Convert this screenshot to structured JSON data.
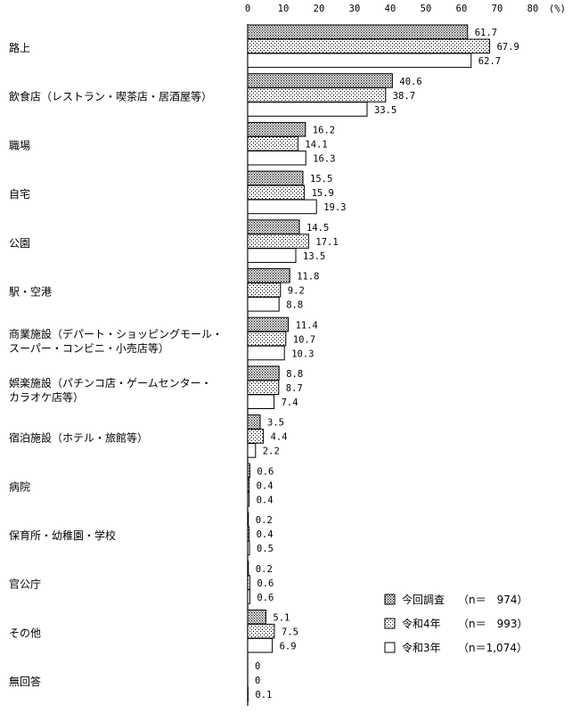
{
  "chart_data": {
    "type": "bar",
    "orientation": "horizontal",
    "unit_label": "(%)",
    "xlim": [
      0,
      80
    ],
    "xticks": [
      "0",
      "10",
      "20",
      "30",
      "40",
      "50",
      "60",
      "70",
      "80"
    ],
    "grid": false,
    "legend_position": "bottom-right",
    "categories": [
      [
        "路上"
      ],
      [
        "飲食店（レストラン・喫茶店・居酒屋等）"
      ],
      [
        "職場"
      ],
      [
        "自宅"
      ],
      [
        "公園"
      ],
      [
        "駅・空港"
      ],
      [
        "商業施設（デパート・ショッピングモール・",
        "スーパー・コンビニ・小売店等）"
      ],
      [
        "娯楽施設（パチンコ店・ゲームセンター・",
        "カラオケ店等）"
      ],
      [
        "宿泊施設（ホテル・旅館等）"
      ],
      [
        "病院"
      ],
      [
        "保育所・幼稚園・学校"
      ],
      [
        "官公庁"
      ],
      [
        "その他"
      ],
      [
        "無回答"
      ]
    ],
    "series": [
      {
        "name": "今回調査",
        "n_label": "（n＝　974）",
        "pattern": "dense-dots",
        "values": [
          61.7,
          40.6,
          16.2,
          15.5,
          14.5,
          11.8,
          11.4,
          8.8,
          3.5,
          0.6,
          0.2,
          0.2,
          5.1,
          0
        ],
        "value_labels": [
          "61.7",
          "40.6",
          "16.2",
          "15.5",
          "14.5",
          "11.8",
          "11.4",
          "8.8",
          "3.5",
          "0.6",
          "0.2",
          "0.2",
          "5.1",
          "0"
        ]
      },
      {
        "name": "令和4年",
        "n_label": "（n＝　993）",
        "pattern": "sparse-dots",
        "values": [
          67.9,
          38.7,
          14.1,
          15.9,
          17.1,
          9.2,
          10.7,
          8.7,
          4.4,
          0.4,
          0.4,
          0.6,
          7.5,
          0
        ],
        "value_labels": [
          "67.9",
          "38.7",
          "14.1",
          "15.9",
          "17.1",
          "9.2",
          "10.7",
          "8.7",
          "4.4",
          "0.4",
          "0.4",
          "0.6",
          "7.5",
          "0"
        ]
      },
      {
        "name": "令和3年",
        "n_label": "（n＝1,074）",
        "pattern": "white",
        "values": [
          62.7,
          33.5,
          16.3,
          19.3,
          13.5,
          8.8,
          10.3,
          7.4,
          2.2,
          0.4,
          0.5,
          0.6,
          6.9,
          0.1
        ],
        "value_labels": [
          "62.7",
          "33.5",
          "16.3",
          "19.3",
          "13.5",
          "8.8",
          "10.3",
          "7.4",
          "2.2",
          "0.4",
          "0.5",
          "0.6",
          "6.9",
          "0.1"
        ]
      }
    ]
  }
}
